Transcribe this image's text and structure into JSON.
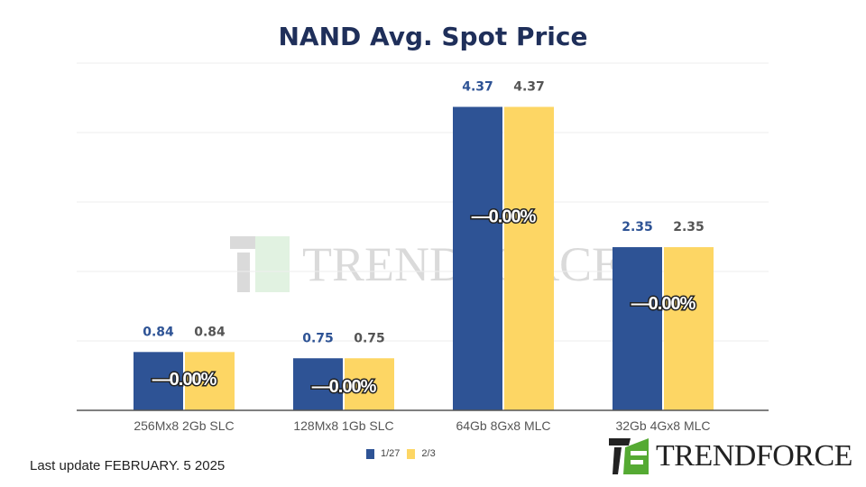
{
  "chart_data": {
    "type": "bar",
    "title": "NAND Avg. Spot Price",
    "categories": [
      "256Mx8 2Gb SLC",
      "128Mx8 1Gb SLC",
      "64Gb 8Gx8 MLC",
      "32Gb 4Gx8 MLC"
    ],
    "series": [
      {
        "name": "1/27",
        "values": [
          0.84,
          0.75,
          4.37,
          2.35
        ],
        "color": "#2e5395"
      },
      {
        "name": "2/3",
        "values": [
          0.84,
          0.75,
          4.37,
          2.35
        ],
        "color": "#fdd664"
      }
    ],
    "change_labels": [
      "—0.00%",
      "—0.00%",
      "—0.00%",
      "—0.00%"
    ],
    "ylim": [
      0,
      5
    ],
    "grid": true,
    "legend": "bottom"
  },
  "footer": {
    "last_update": "Last update FEBRUARY. 5  2025"
  },
  "logo": {
    "text": "TrendForce"
  }
}
